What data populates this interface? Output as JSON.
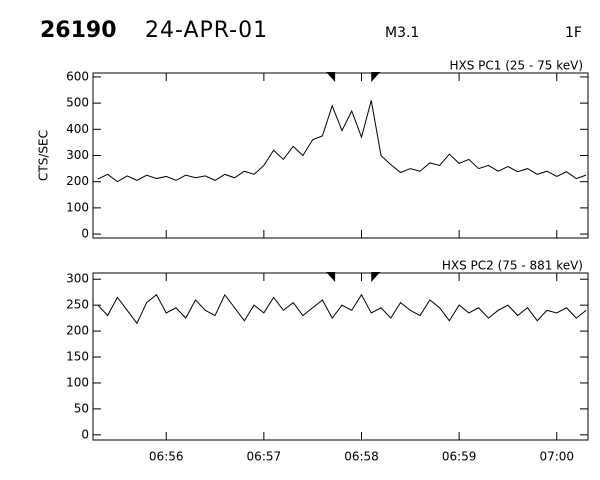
{
  "header": {
    "id": "26190",
    "date": "24-APR-01",
    "class": "M3.1",
    "flare": "1F"
  },
  "chart_data": [
    {
      "type": "line",
      "title": "HXS PC1 (25 - 75 keV)",
      "y_label": "CTS/SEC",
      "color": "#000000",
      "x": [
        55.3,
        55.4,
        55.5,
        55.6,
        55.7,
        55.8,
        55.9,
        56.0,
        56.1,
        56.2,
        56.3,
        56.4,
        56.5,
        56.6,
        56.7,
        56.8,
        56.9,
        57.0,
        57.1,
        57.2,
        57.3,
        57.4,
        57.5,
        57.6,
        57.7,
        57.8,
        57.9,
        58.0,
        58.1,
        58.2,
        58.3,
        58.4,
        58.5,
        58.6,
        58.7,
        58.8,
        58.9,
        59.0,
        59.1,
        59.2,
        59.3,
        59.4,
        59.5,
        59.6,
        59.7,
        59.8,
        59.9,
        60.0,
        60.1,
        60.2,
        60.3
      ],
      "values": [
        210,
        228,
        200,
        222,
        205,
        225,
        212,
        220,
        205,
        225,
        215,
        222,
        205,
        228,
        215,
        240,
        228,
        262,
        320,
        285,
        335,
        300,
        360,
        375,
        490,
        395,
        470,
        370,
        510,
        300,
        265,
        235,
        250,
        240,
        272,
        262,
        305,
        270,
        285,
        250,
        262,
        240,
        258,
        238,
        250,
        228,
        240,
        220,
        238,
        212,
        225
      ],
      "xlim": [
        55.25,
        60.32
      ],
      "xticks": [
        56,
        57,
        58,
        59,
        60
      ],
      "ylim": [
        -15,
        615
      ],
      "yticks": [
        0,
        100,
        200,
        300,
        400,
        500,
        600
      ],
      "flag_times": [
        57.73,
        58.1
      ]
    },
    {
      "type": "line",
      "title": "HXS PC2 (75 - 881 keV)",
      "color": "#000000",
      "x": [
        55.3,
        55.4,
        55.5,
        55.6,
        55.7,
        55.8,
        55.9,
        56.0,
        56.1,
        56.2,
        56.3,
        56.4,
        56.5,
        56.6,
        56.7,
        56.8,
        56.9,
        57.0,
        57.1,
        57.2,
        57.3,
        57.4,
        57.5,
        57.6,
        57.7,
        57.8,
        57.9,
        58.0,
        58.1,
        58.2,
        58.3,
        58.4,
        58.5,
        58.6,
        58.7,
        58.8,
        58.9,
        59.0,
        59.1,
        59.2,
        59.3,
        59.4,
        59.5,
        59.6,
        59.7,
        59.8,
        59.9,
        60.0,
        60.1,
        60.2,
        60.3
      ],
      "values": [
        250,
        230,
        265,
        240,
        215,
        255,
        270,
        235,
        245,
        225,
        260,
        240,
        230,
        270,
        245,
        220,
        250,
        235,
        265,
        240,
        255,
        230,
        245,
        260,
        225,
        250,
        240,
        270,
        235,
        245,
        225,
        255,
        240,
        230,
        260,
        245,
        220,
        250,
        235,
        245,
        225,
        240,
        250,
        230,
        245,
        220,
        240,
        235,
        245,
        225,
        240
      ],
      "xlim": [
        55.25,
        60.32
      ],
      "xticks": [
        {
          "value": 56,
          "label": "06:56"
        },
        {
          "value": 57,
          "label": "06:57"
        },
        {
          "value": 58,
          "label": "06:58"
        },
        {
          "value": 59,
          "label": "06:59"
        },
        {
          "value": 60,
          "label": "07:00"
        }
      ],
      "ylim": [
        -10,
        312
      ],
      "yticks": [
        0,
        50,
        100,
        150,
        200,
        250,
        300
      ],
      "flag_times": [
        57.73,
        58.1
      ]
    }
  ]
}
